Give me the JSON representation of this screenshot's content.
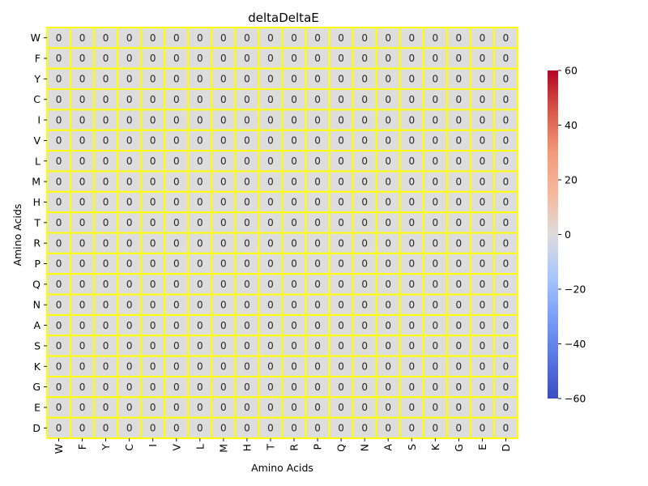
{
  "chart_data": {
    "type": "heatmap",
    "title": "deltaDeltaE",
    "xlabel": "Amino Acids",
    "ylabel": "Amino Acids",
    "x_categories": [
      "W",
      "F",
      "Y",
      "C",
      "I",
      "V",
      "L",
      "M",
      "H",
      "T",
      "R",
      "P",
      "Q",
      "N",
      "A",
      "S",
      "K",
      "G",
      "E",
      "D"
    ],
    "y_categories": [
      "W",
      "F",
      "Y",
      "C",
      "I",
      "V",
      "L",
      "M",
      "H",
      "T",
      "R",
      "P",
      "Q",
      "N",
      "A",
      "S",
      "K",
      "G",
      "E",
      "D"
    ],
    "values": [
      [
        0,
        0,
        0,
        0,
        0,
        0,
        0,
        0,
        0,
        0,
        0,
        0,
        0,
        0,
        0,
        0,
        0,
        0,
        0,
        0
      ],
      [
        0,
        0,
        0,
        0,
        0,
        0,
        0,
        0,
        0,
        0,
        0,
        0,
        0,
        0,
        0,
        0,
        0,
        0,
        0,
        0
      ],
      [
        0,
        0,
        0,
        0,
        0,
        0,
        0,
        0,
        0,
        0,
        0,
        0,
        0,
        0,
        0,
        0,
        0,
        0,
        0,
        0
      ],
      [
        0,
        0,
        0,
        0,
        0,
        0,
        0,
        0,
        0,
        0,
        0,
        0,
        0,
        0,
        0,
        0,
        0,
        0,
        0,
        0
      ],
      [
        0,
        0,
        0,
        0,
        0,
        0,
        0,
        0,
        0,
        0,
        0,
        0,
        0,
        0,
        0,
        0,
        0,
        0,
        0,
        0
      ],
      [
        0,
        0,
        0,
        0,
        0,
        0,
        0,
        0,
        0,
        0,
        0,
        0,
        0,
        0,
        0,
        0,
        0,
        0,
        0,
        0
      ],
      [
        0,
        0,
        0,
        0,
        0,
        0,
        0,
        0,
        0,
        0,
        0,
        0,
        0,
        0,
        0,
        0,
        0,
        0,
        0,
        0
      ],
      [
        0,
        0,
        0,
        0,
        0,
        0,
        0,
        0,
        0,
        0,
        0,
        0,
        0,
        0,
        0,
        0,
        0,
        0,
        0,
        0
      ],
      [
        0,
        0,
        0,
        0,
        0,
        0,
        0,
        0,
        0,
        0,
        0,
        0,
        0,
        0,
        0,
        0,
        0,
        0,
        0,
        0
      ],
      [
        0,
        0,
        0,
        0,
        0,
        0,
        0,
        0,
        0,
        0,
        0,
        0,
        0,
        0,
        0,
        0,
        0,
        0,
        0,
        0
      ],
      [
        0,
        0,
        0,
        0,
        0,
        0,
        0,
        0,
        0,
        0,
        0,
        0,
        0,
        0,
        0,
        0,
        0,
        0,
        0,
        0
      ],
      [
        0,
        0,
        0,
        0,
        0,
        0,
        0,
        0,
        0,
        0,
        0,
        0,
        0,
        0,
        0,
        0,
        0,
        0,
        0,
        0
      ],
      [
        0,
        0,
        0,
        0,
        0,
        0,
        0,
        0,
        0,
        0,
        0,
        0,
        0,
        0,
        0,
        0,
        0,
        0,
        0,
        0
      ],
      [
        0,
        0,
        0,
        0,
        0,
        0,
        0,
        0,
        0,
        0,
        0,
        0,
        0,
        0,
        0,
        0,
        0,
        0,
        0,
        0
      ],
      [
        0,
        0,
        0,
        0,
        0,
        0,
        0,
        0,
        0,
        0,
        0,
        0,
        0,
        0,
        0,
        0,
        0,
        0,
        0,
        0
      ],
      [
        0,
        0,
        0,
        0,
        0,
        0,
        0,
        0,
        0,
        0,
        0,
        0,
        0,
        0,
        0,
        0,
        0,
        0,
        0,
        0
      ],
      [
        0,
        0,
        0,
        0,
        0,
        0,
        0,
        0,
        0,
        0,
        0,
        0,
        0,
        0,
        0,
        0,
        0,
        0,
        0,
        0
      ],
      [
        0,
        0,
        0,
        0,
        0,
        0,
        0,
        0,
        0,
        0,
        0,
        0,
        0,
        0,
        0,
        0,
        0,
        0,
        0,
        0
      ],
      [
        0,
        0,
        0,
        0,
        0,
        0,
        0,
        0,
        0,
        0,
        0,
        0,
        0,
        0,
        0,
        0,
        0,
        0,
        0,
        0
      ],
      [
        0,
        0,
        0,
        0,
        0,
        0,
        0,
        0,
        0,
        0,
        0,
        0,
        0,
        0,
        0,
        0,
        0,
        0,
        0,
        0
      ]
    ],
    "annotate": true,
    "colormap": "coolwarm",
    "vmin": -60,
    "vmax": 60,
    "colorbar_ticks": [
      60,
      40,
      20,
      0,
      -20,
      -40,
      -60
    ],
    "colorbar_tick_labels": [
      "60",
      "40",
      "20",
      "0",
      "−20",
      "−40",
      "−60"
    ],
    "cell_border_color": "#ffff00",
    "colormap_colors": {
      "low": "#3b4cc0",
      "mid": "#dddddd",
      "high": "#b40426"
    }
  }
}
